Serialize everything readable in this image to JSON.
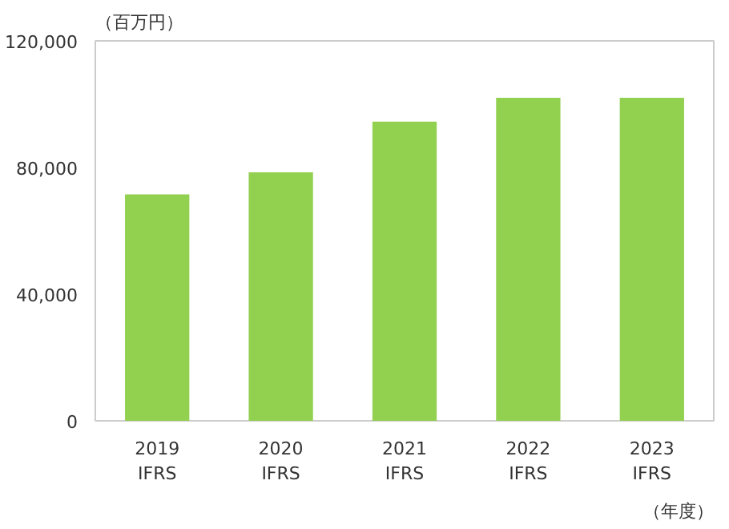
{
  "chart_data": {
    "type": "bar",
    "ylabel": "（百万円）",
    "categories": [
      "2019\nIFRS",
      "2020\nIFRS",
      "2021\nIFRS",
      "2022\nIFRS",
      "2023\nIFRS"
    ],
    "values": [
      71500,
      78500,
      94500,
      102000,
      102000
    ],
    "color": "#92d050",
    "ylim": [
      0,
      120000
    ],
    "yticks": [
      {
        "value": 0,
        "label": "0"
      },
      {
        "value": 40000,
        "label": "40,000"
      },
      {
        "value": 80000,
        "label": "80,000"
      },
      {
        "value": 120000,
        "label": "120,000"
      }
    ],
    "grid": false,
    "annotations": [
      "（年度）"
    ]
  }
}
